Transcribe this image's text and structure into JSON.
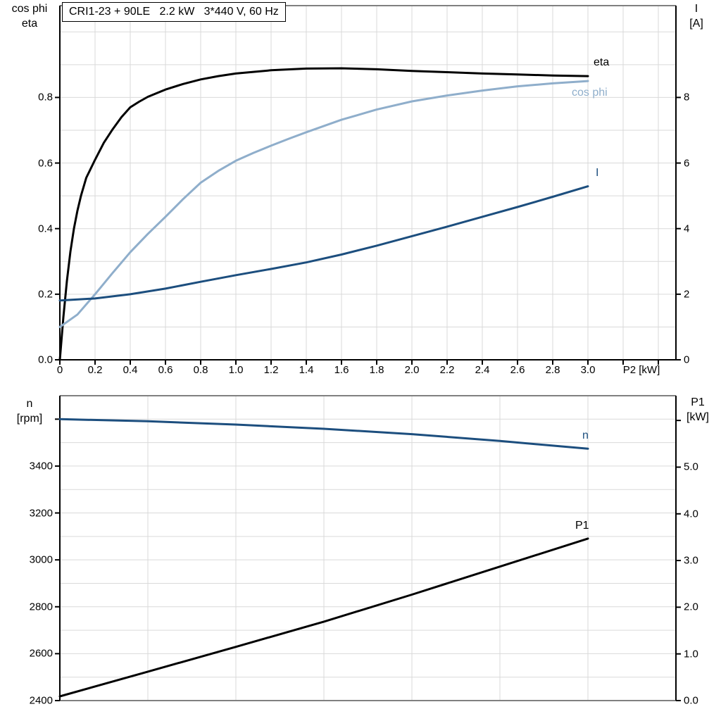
{
  "header": {
    "title": "CRI1-23 + 90LE   2.2 kW   3*440 V, 60 Hz"
  },
  "colors": {
    "black": "#000000",
    "dark_blue": "#1C4E7E",
    "light_blue": "#8FAECB",
    "grid": "#D9D9D9",
    "frame_gray": "#808080"
  },
  "chart_data": [
    {
      "type": "line",
      "title": "CRI1-23 + 90LE 2.2 kW 3*440 V, 60 Hz",
      "xlabel": "P2 [kW]",
      "x_range": [
        0,
        3.5
      ],
      "x_tick_labels": [
        "0",
        "0.2",
        "0.4",
        "0.6",
        "0.8",
        "1.0",
        "1.2",
        "1.4",
        "1.6",
        "1.8",
        "2.0",
        "2.2",
        "2.4",
        "2.6",
        "2.8",
        "3.0"
      ],
      "x_extra_ticks": [
        3.2,
        3.4
      ],
      "grid": {
        "x_step": 0.2,
        "y_step": 0.1
      },
      "y_left": {
        "label_lines": [
          "cos phi",
          "eta"
        ],
        "range": [
          0,
          1.08
        ],
        "tick_labels": [
          "0.0",
          "0.2",
          "0.4",
          "0.6",
          "0.8"
        ],
        "extra_ticks": []
      },
      "y_right": {
        "label_lines": [
          "I",
          "[A]"
        ],
        "range": [
          0,
          10.8
        ],
        "tick_labels": [
          "0",
          "2",
          "4",
          "6",
          "8"
        ],
        "extra_ticks": []
      },
      "series": [
        {
          "name": "eta",
          "axis": "left",
          "color": "#000000",
          "points": [
            [
              0,
              0
            ],
            [
              0.02,
              0.13
            ],
            [
              0.04,
              0.24
            ],
            [
              0.06,
              0.33
            ],
            [
              0.08,
              0.4
            ],
            [
              0.1,
              0.455
            ],
            [
              0.12,
              0.5
            ],
            [
              0.15,
              0.555
            ],
            [
              0.2,
              0.61
            ],
            [
              0.25,
              0.662
            ],
            [
              0.3,
              0.703
            ],
            [
              0.35,
              0.74
            ],
            [
              0.4,
              0.77
            ],
            [
              0.45,
              0.787
            ],
            [
              0.5,
              0.802
            ],
            [
              0.6,
              0.824
            ],
            [
              0.7,
              0.841
            ],
            [
              0.8,
              0.855
            ],
            [
              0.9,
              0.865
            ],
            [
              1.0,
              0.873
            ],
            [
              1.2,
              0.883
            ],
            [
              1.4,
              0.888
            ],
            [
              1.6,
              0.889
            ],
            [
              1.8,
              0.886
            ],
            [
              2.0,
              0.881
            ],
            [
              2.2,
              0.877
            ],
            [
              2.4,
              0.873
            ],
            [
              2.6,
              0.87
            ],
            [
              2.8,
              0.867
            ],
            [
              3.0,
              0.865
            ]
          ]
        },
        {
          "name": "cos phi",
          "axis": "left",
          "color": "#8FAECB",
          "points": [
            [
              0,
              0.1
            ],
            [
              0.1,
              0.138
            ],
            [
              0.2,
              0.2
            ],
            [
              0.3,
              0.265
            ],
            [
              0.4,
              0.328
            ],
            [
              0.5,
              0.384
            ],
            [
              0.6,
              0.436
            ],
            [
              0.7,
              0.49
            ],
            [
              0.8,
              0.54
            ],
            [
              0.9,
              0.576
            ],
            [
              1.0,
              0.607
            ],
            [
              1.1,
              0.631
            ],
            [
              1.2,
              0.653
            ],
            [
              1.3,
              0.674
            ],
            [
              1.4,
              0.694
            ],
            [
              1.6,
              0.732
            ],
            [
              1.8,
              0.763
            ],
            [
              2.0,
              0.788
            ],
            [
              2.2,
              0.806
            ],
            [
              2.4,
              0.821
            ],
            [
              2.6,
              0.834
            ],
            [
              2.8,
              0.843
            ],
            [
              3.0,
              0.85
            ]
          ]
        },
        {
          "name": "I",
          "axis": "right",
          "color": "#1C4E7E",
          "points": [
            [
              0,
              1.81
            ],
            [
              0.2,
              1.87
            ],
            [
              0.4,
              2.0
            ],
            [
              0.6,
              2.17
            ],
            [
              0.8,
              2.38
            ],
            [
              1.0,
              2.58
            ],
            [
              1.2,
              2.77
            ],
            [
              1.4,
              2.97
            ],
            [
              1.6,
              3.21
            ],
            [
              1.8,
              3.48
            ],
            [
              2.0,
              3.77
            ],
            [
              2.2,
              4.06
            ],
            [
              2.4,
              4.36
            ],
            [
              2.6,
              4.66
            ],
            [
              2.8,
              4.97
            ],
            [
              3.0,
              5.29
            ]
          ]
        }
      ]
    },
    {
      "type": "line",
      "title": "",
      "xlabel": "",
      "x_range": [
        0,
        3.5
      ],
      "x_tick_labels": [],
      "x_extra_ticks": [],
      "grid": {
        "x_step": 0.5,
        "y_step": 100
      },
      "y_left": {
        "label_lines": [
          "n",
          "[rpm]"
        ],
        "range": [
          2400,
          3700
        ],
        "tick_labels": [
          "2400",
          "2600",
          "2800",
          "3000",
          "3200",
          "3400"
        ],
        "extra_ticks": [
          3600
        ]
      },
      "y_right": {
        "label_lines": [
          "P1",
          "[kW]"
        ],
        "range": [
          0,
          6.53
        ],
        "tick_labels": [
          "0.0",
          "1.0",
          "2.0",
          "3.0",
          "4.0",
          "5.0"
        ],
        "extra_ticks": [
          6.0
        ]
      },
      "series": [
        {
          "name": "n",
          "axis": "left",
          "color": "#1C4E7E",
          "points": [
            [
              0,
              3600
            ],
            [
              0.5,
              3591
            ],
            [
              1.0,
              3577
            ],
            [
              1.5,
              3559
            ],
            [
              2.0,
              3536
            ],
            [
              2.5,
              3507
            ],
            [
              3.0,
              3474
            ]
          ]
        },
        {
          "name": "P1",
          "axis": "right",
          "color": "#000000",
          "points": [
            [
              0,
              0.09
            ],
            [
              0.5,
              0.62
            ],
            [
              1.0,
              1.15
            ],
            [
              1.5,
              1.69
            ],
            [
              2.0,
              2.27
            ],
            [
              2.5,
              2.87
            ],
            [
              3.0,
              3.47
            ]
          ]
        }
      ]
    }
  ]
}
